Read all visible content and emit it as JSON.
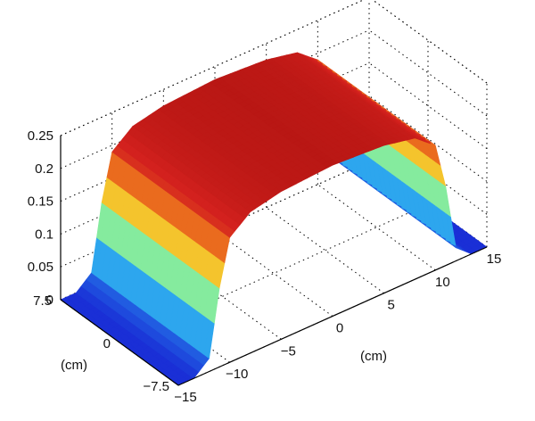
{
  "chart_data": {
    "type": "surface",
    "title": "",
    "xlabel": "(cm)",
    "ylabel": "(cm)",
    "zlabel": "",
    "x_range": [
      -15,
      15
    ],
    "y_range": [
      -7.5,
      7.5
    ],
    "z_range": [
      0,
      0.25
    ],
    "x_ticks": [
      "−15",
      "−10",
      "−5",
      "0",
      "5",
      "10",
      "15"
    ],
    "y_ticks": [
      "−7.5",
      "0",
      "7.5"
    ],
    "z_ticks": [
      "0",
      "0.05",
      "0.1",
      "0.15",
      "0.2",
      "0.25"
    ],
    "x_tick_values": [
      -15,
      -10,
      -5,
      0,
      5,
      10,
      15
    ],
    "y_tick_values": [
      -7.5,
      0,
      7.5
    ],
    "z_tick_values": [
      0,
      0.05,
      0.1,
      0.15,
      0.2,
      0.25
    ],
    "grid": true,
    "colormap": [
      "#1a2fd6",
      "#2a9bf0",
      "#3de8e0",
      "#f2f03a",
      "#f7941e",
      "#d4211e",
      "#b31512"
    ],
    "surface_profile": {
      "x": [
        -15,
        -13.5,
        -12,
        -11,
        -10,
        -8,
        -5,
        0,
        5,
        8,
        10,
        11,
        12,
        13.5,
        15
      ],
      "z": [
        0,
        0,
        0.02,
        0.12,
        0.19,
        0.215,
        0.225,
        0.23,
        0.225,
        0.215,
        0.19,
        0.12,
        0.02,
        0,
        0
      ],
      "y_extent": [
        -7.5,
        7.5
      ]
    }
  }
}
